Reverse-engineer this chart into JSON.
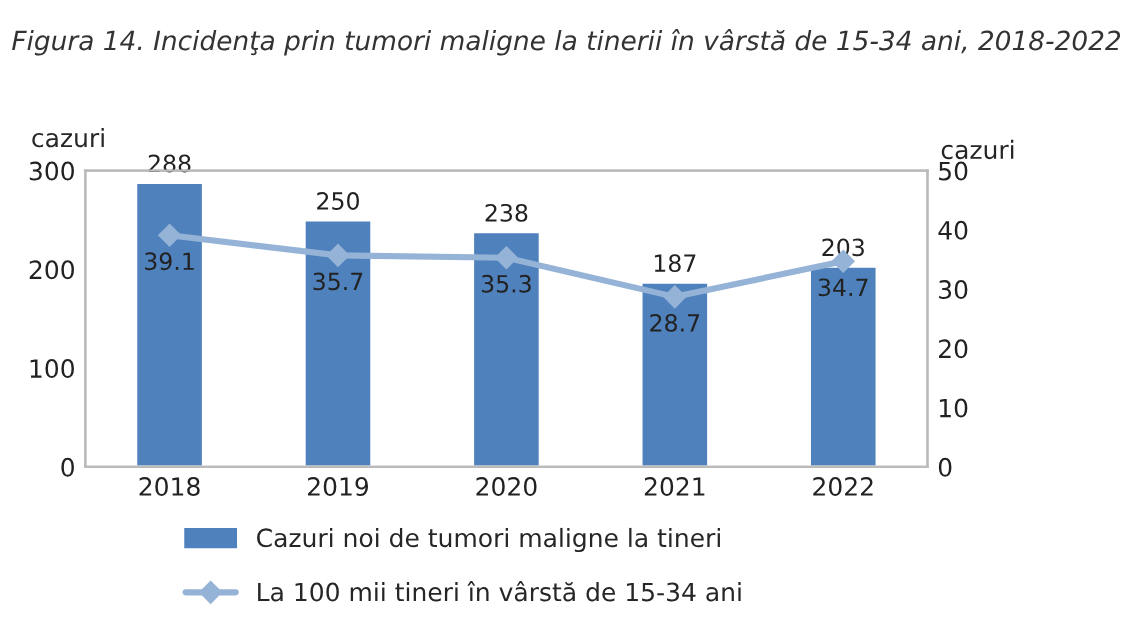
{
  "chart_data": {
    "type": "bar",
    "title": "Figura 14. Incidenţa prin tumori maligne la tinerii în vârstă de 15-34 ani, 2018-2022",
    "categories": [
      "2018",
      "2019",
      "2020",
      "2021",
      "2022"
    ],
    "series": [
      {
        "name": "Cazuri noi de tumori maligne la tineri",
        "color": "#4f81bd",
        "values": [
          288,
          250,
          238,
          187,
          203
        ]
      },
      {
        "name": "La 100 mii tineri în vârstă de 15-34 ani",
        "color": "#95b3d7",
        "values": [
          39.1,
          35.7,
          35.3,
          28.7,
          34.7
        ],
        "type": "line",
        "axis": "y2",
        "marker": "diamond"
      }
    ],
    "ylabel": "cazuri",
    "y2label": "cazuri",
    "ylim": [
      0,
      300
    ],
    "yticks": [
      0,
      100,
      200,
      300
    ],
    "y2lim": [
      0,
      50
    ],
    "y2ticks": [
      0,
      10,
      20,
      30,
      40,
      50
    ],
    "data_labels": true,
    "legend": "bottom",
    "grid": false
  }
}
